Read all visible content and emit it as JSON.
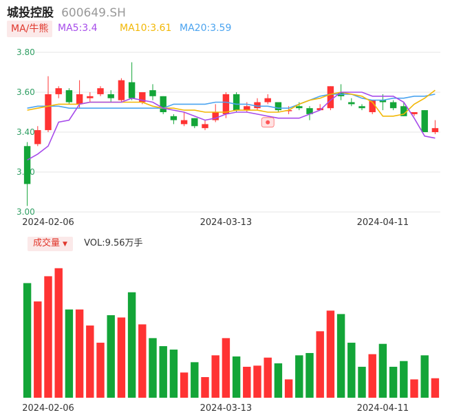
{
  "header": {
    "name": "城投控股",
    "code": "600649.SH"
  },
  "legend": {
    "ma_label": "MA/牛熊",
    "ma5": "MA5:3.4",
    "ma10": "MA10:3.61",
    "ma20": "MA20:3.59"
  },
  "volume": {
    "label": "成交量",
    "value": "VOL:9.56万手"
  },
  "colors": {
    "up": "#ff3333",
    "down": "#13a538",
    "ma5": "#a64bea",
    "ma10": "#f2b705",
    "ma20": "#4aa3f0"
  },
  "chart_data": {
    "type": "candlestick",
    "ylim": [
      3.0,
      3.8
    ],
    "yticks": [
      "3.80",
      "3.60",
      "3.40",
      "3.20",
      "3.00"
    ],
    "xlabels": [
      {
        "index": 2,
        "label": "2024-02-06"
      },
      {
        "index": 19,
        "label": "2024-03-13"
      },
      {
        "index": 34,
        "label": "2024-04-11"
      }
    ],
    "candles": [
      [
        3.33,
        3.14,
        3.35,
        3.03
      ],
      [
        3.34,
        3.41,
        3.43,
        3.33
      ],
      [
        3.41,
        3.59,
        3.68,
        3.4
      ],
      [
        3.59,
        3.62,
        3.63,
        3.57
      ],
      [
        3.61,
        3.55,
        3.62,
        3.54
      ],
      [
        3.54,
        3.59,
        3.66,
        3.52
      ],
      [
        3.57,
        3.58,
        3.6,
        3.55
      ],
      [
        3.59,
        3.62,
        3.63,
        3.58
      ],
      [
        3.59,
        3.57,
        3.61,
        3.55
      ],
      [
        3.56,
        3.66,
        3.67,
        3.55
      ],
      [
        3.65,
        3.57,
        3.75,
        3.56
      ],
      [
        3.55,
        3.6,
        3.6,
        3.54
      ],
      [
        3.61,
        3.58,
        3.64,
        3.56
      ],
      [
        3.58,
        3.5,
        3.58,
        3.49
      ],
      [
        3.48,
        3.46,
        3.49,
        3.44
      ],
      [
        3.44,
        3.46,
        3.5,
        3.43
      ],
      [
        3.47,
        3.43,
        3.47,
        3.42
      ],
      [
        3.42,
        3.44,
        3.46,
        3.41
      ],
      [
        3.46,
        3.5,
        3.54,
        3.45
      ],
      [
        3.49,
        3.59,
        3.6,
        3.47
      ],
      [
        3.59,
        3.51,
        3.6,
        3.5
      ],
      [
        3.51,
        3.53,
        3.55,
        3.5
      ],
      [
        3.52,
        3.55,
        3.57,
        3.51
      ],
      [
        3.55,
        3.57,
        3.59,
        3.54
      ],
      [
        3.55,
        3.51,
        3.55,
        3.5
      ],
      [
        3.51,
        3.51,
        3.53,
        3.49
      ],
      [
        3.53,
        3.52,
        3.55,
        3.51
      ],
      [
        3.52,
        3.49,
        3.53,
        3.46
      ],
      [
        3.51,
        3.52,
        3.54,
        3.51
      ],
      [
        3.52,
        3.63,
        3.63,
        3.51
      ],
      [
        3.6,
        3.58,
        3.64,
        3.56
      ],
      [
        3.55,
        3.54,
        3.57,
        3.53
      ],
      [
        3.53,
        3.52,
        3.54,
        3.51
      ],
      [
        3.5,
        3.56,
        3.56,
        3.49
      ],
      [
        3.56,
        3.55,
        3.59,
        3.51
      ],
      [
        3.55,
        3.52,
        3.56,
        3.51
      ],
      [
        3.53,
        3.48,
        3.55,
        3.48
      ],
      [
        3.49,
        3.5,
        3.5,
        3.48
      ],
      [
        3.51,
        3.4,
        3.51,
        3.4
      ],
      [
        3.4,
        3.42,
        3.46,
        3.39
      ]
    ],
    "volumes": [
      10.0,
      8.4,
      10.6,
      11.3,
      7.7,
      7.7,
      6.3,
      4.8,
      7.2,
      7.0,
      9.2,
      6.4,
      5.2,
      4.5,
      4.2,
      2.2,
      3.1,
      1.8,
      3.7,
      5.2,
      3.6,
      2.7,
      2.8,
      3.5,
      3.0,
      1.6,
      3.7,
      3.9,
      5.8,
      7.6,
      7.3,
      4.8,
      2.7,
      3.8,
      4.7,
      2.7,
      3.2,
      1.6,
      3.7,
      1.7
    ],
    "ma5": [
      3.26,
      3.29,
      3.33,
      3.45,
      3.46,
      3.54,
      3.55,
      3.55,
      3.55,
      3.55,
      3.57,
      3.56,
      3.55,
      3.52,
      3.51,
      3.5,
      3.48,
      3.46,
      3.47,
      3.49,
      3.5,
      3.5,
      3.49,
      3.48,
      3.47,
      3.47,
      3.47,
      3.49,
      3.51,
      3.56,
      3.6,
      3.6,
      3.6,
      3.58,
      3.58,
      3.58,
      3.55,
      3.47,
      3.38,
      3.37
    ],
    "ma10": [
      3.51,
      3.52,
      3.53,
      3.54,
      3.54,
      3.54,
      3.55,
      3.55,
      3.55,
      3.55,
      3.55,
      3.55,
      3.53,
      3.52,
      3.52,
      3.51,
      3.51,
      3.5,
      3.5,
      3.5,
      3.51,
      3.51,
      3.51,
      3.5,
      3.5,
      3.51,
      3.54,
      3.56,
      3.57,
      3.59,
      3.6,
      3.59,
      3.58,
      3.55,
      3.48,
      3.48,
      3.49,
      3.54,
      3.57,
      3.61
    ],
    "ma20": [
      3.52,
      3.53,
      3.53,
      3.53,
      3.52,
      3.52,
      3.52,
      3.52,
      3.52,
      3.52,
      3.52,
      3.52,
      3.52,
      3.52,
      3.54,
      3.54,
      3.54,
      3.54,
      3.55,
      3.55,
      3.54,
      3.54,
      3.53,
      3.53,
      3.52,
      3.52,
      3.54,
      3.56,
      3.58,
      3.59,
      3.59,
      3.59,
      3.57,
      3.56,
      3.56,
      3.57,
      3.57,
      3.58,
      3.58,
      3.59
    ]
  }
}
